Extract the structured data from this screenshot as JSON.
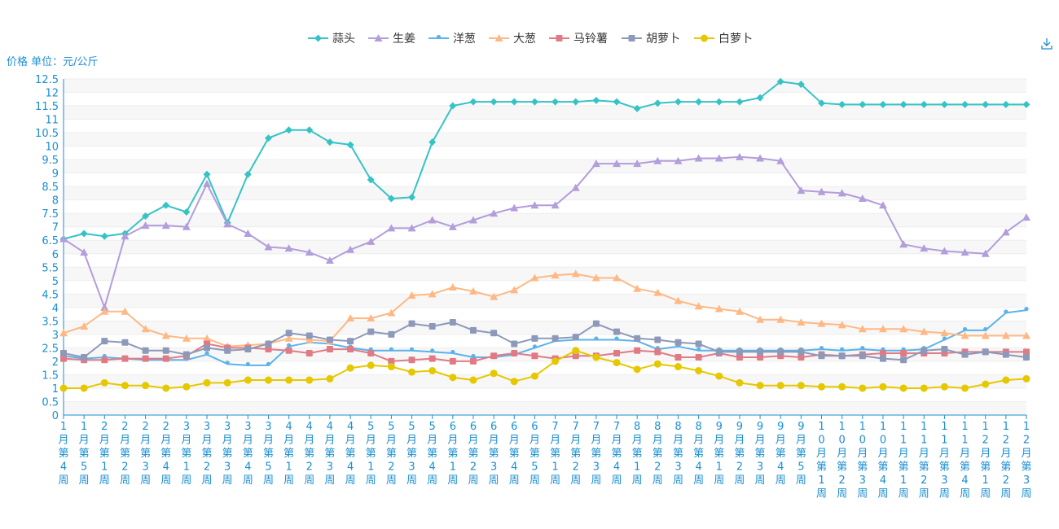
{
  "chart_data": {
    "type": "line",
    "ylabel": "价格 单位：元/公斤",
    "ylim": [
      0,
      12.5
    ],
    "ytick_step": 0.5,
    "grid": "horizontal-banded",
    "legend_position": "top-center",
    "toolbar": {
      "download_icon": "download-icon"
    },
    "categories": [
      "1月第4周",
      "1月第5周",
      "2月第1周",
      "2月第2周",
      "2月第3周",
      "2月第4周",
      "3月第1周",
      "3月第2周",
      "3月第3周",
      "3月第4周",
      "3月第5周",
      "4月第1周",
      "4月第2周",
      "4月第3周",
      "4月第4周",
      "5月第1周",
      "5月第2周",
      "5月第3周",
      "5月第4周",
      "6月第1周",
      "6月第2周",
      "6月第3周",
      "6月第4周",
      "6月第5周",
      "7月第1周",
      "7月第2周",
      "7月第3周",
      "7月第4周",
      "8月第1周",
      "8月第2周",
      "8月第3周",
      "8月第4周",
      "9月第1周",
      "9月第2周",
      "9月第3周",
      "9月第4周",
      "9月第5周",
      "10月第1周",
      "10月第2周",
      "10月第3周",
      "10月第4周",
      "11月第1周",
      "11月第2周",
      "11月第3周",
      "11月第4周",
      "12月第1周",
      "12月第2周",
      "12月第3周"
    ],
    "series": [
      {
        "name": "蒜头",
        "color": "#36c3c6",
        "marker": "diamond",
        "values": [
          6.55,
          6.75,
          6.65,
          6.75,
          7.4,
          7.8,
          7.55,
          8.95,
          7.15,
          8.95,
          10.3,
          10.6,
          10.6,
          10.15,
          10.05,
          8.75,
          8.05,
          8.1,
          10.15,
          11.5,
          11.65,
          11.65,
          11.65,
          11.65,
          11.65,
          11.65,
          11.7,
          11.65,
          11.4,
          11.6,
          11.65,
          11.65,
          11.65,
          11.65,
          11.8,
          12.4,
          12.3,
          11.6,
          11.55,
          11.55,
          11.55,
          11.55,
          11.55,
          11.55,
          11.55,
          11.55,
          11.55,
          11.55
        ]
      },
      {
        "name": "生姜",
        "color": "#b39ddb",
        "marker": "triangle",
        "values": [
          6.55,
          6.05,
          4.0,
          6.65,
          7.05,
          7.05,
          7.0,
          8.6,
          7.1,
          6.75,
          6.25,
          6.2,
          6.05,
          5.75,
          6.15,
          6.45,
          6.95,
          6.95,
          7.25,
          7.0,
          7.25,
          7.5,
          7.7,
          7.8,
          7.8,
          8.45,
          9.35,
          9.35,
          9.35,
          9.45,
          9.45,
          9.55,
          9.55,
          9.6,
          9.55,
          9.45,
          8.35,
          8.3,
          8.25,
          8.05,
          7.8,
          6.35,
          6.2,
          6.1,
          6.05,
          6.0,
          6.8,
          7.35
        ]
      },
      {
        "name": "洋葱",
        "color": "#5bb3e8",
        "marker": "pin",
        "values": [
          2.2,
          2.1,
          2.15,
          2.1,
          2.05,
          2.05,
          2.05,
          2.25,
          1.9,
          1.85,
          1.85,
          2.55,
          2.7,
          2.65,
          2.5,
          2.4,
          2.4,
          2.4,
          2.35,
          2.3,
          2.15,
          2.15,
          2.25,
          2.5,
          2.75,
          2.8,
          2.8,
          2.8,
          2.75,
          2.45,
          2.55,
          2.4,
          2.4,
          2.4,
          2.4,
          2.4,
          2.4,
          2.45,
          2.4,
          2.45,
          2.4,
          2.4,
          2.45,
          2.8,
          3.15,
          3.15,
          3.8,
          3.9
        ]
      },
      {
        "name": "大葱",
        "color": "#ffb884",
        "marker": "triangle",
        "values": [
          3.05,
          3.3,
          3.85,
          3.85,
          3.2,
          2.95,
          2.85,
          2.85,
          2.55,
          2.6,
          2.65,
          2.85,
          2.8,
          2.75,
          3.6,
          3.6,
          3.8,
          4.45,
          4.5,
          4.75,
          4.6,
          4.4,
          4.65,
          5.1,
          5.2,
          5.25,
          5.1,
          5.1,
          4.7,
          4.55,
          4.25,
          4.05,
          3.95,
          3.85,
          3.55,
          3.55,
          3.45,
          3.4,
          3.35,
          3.2,
          3.2,
          3.2,
          3.1,
          3.05,
          2.95,
          2.95,
          2.95,
          2.95
        ]
      },
      {
        "name": "马铃薯",
        "color": "#e07b86",
        "marker": "square",
        "values": [
          2.1,
          2.05,
          2.05,
          2.1,
          2.1,
          2.1,
          2.2,
          2.65,
          2.5,
          2.5,
          2.45,
          2.4,
          2.3,
          2.45,
          2.45,
          2.3,
          2.0,
          2.05,
          2.1,
          2.0,
          2.0,
          2.2,
          2.3,
          2.2,
          2.1,
          2.2,
          2.2,
          2.3,
          2.4,
          2.35,
          2.15,
          2.15,
          2.3,
          2.15,
          2.15,
          2.2,
          2.15,
          2.25,
          2.2,
          2.25,
          2.3,
          2.3,
          2.3,
          2.3,
          2.35,
          2.35,
          2.35,
          2.35
        ]
      },
      {
        "name": "胡萝卜",
        "color": "#8e99b9",
        "marker": "square",
        "values": [
          2.3,
          2.15,
          2.75,
          2.7,
          2.4,
          2.4,
          2.25,
          2.5,
          2.4,
          2.45,
          2.65,
          3.05,
          2.95,
          2.8,
          2.75,
          3.1,
          3.0,
          3.4,
          3.3,
          3.45,
          3.15,
          3.05,
          2.65,
          2.85,
          2.85,
          2.9,
          3.4,
          3.1,
          2.85,
          2.8,
          2.7,
          2.65,
          2.35,
          2.35,
          2.35,
          2.35,
          2.35,
          2.2,
          2.2,
          2.2,
          2.1,
          2.05,
          2.4,
          2.45,
          2.25,
          2.35,
          2.25,
          2.15
        ]
      },
      {
        "name": "白萝卜",
        "color": "#e5c800",
        "marker": "circle",
        "values": [
          1.0,
          1.0,
          1.2,
          1.1,
          1.1,
          1.0,
          1.05,
          1.2,
          1.2,
          1.3,
          1.3,
          1.3,
          1.3,
          1.35,
          1.75,
          1.85,
          1.8,
          1.6,
          1.65,
          1.4,
          1.3,
          1.55,
          1.25,
          1.45,
          2.0,
          2.4,
          2.15,
          1.95,
          1.7,
          1.9,
          1.8,
          1.65,
          1.45,
          1.2,
          1.1,
          1.1,
          1.1,
          1.05,
          1.05,
          1.0,
          1.05,
          1.0,
          1.0,
          1.05,
          1.0,
          1.15,
          1.3,
          1.35
        ]
      }
    ]
  }
}
